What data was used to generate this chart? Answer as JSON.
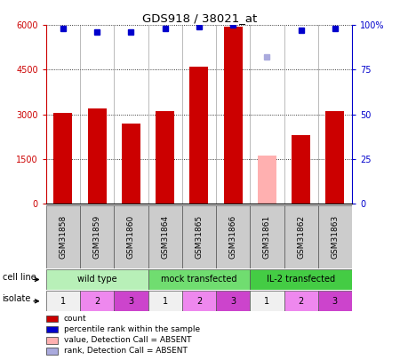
{
  "title": "GDS918 / 38021_at",
  "samples": [
    "GSM31858",
    "GSM31859",
    "GSM31860",
    "GSM31864",
    "GSM31865",
    "GSM31866",
    "GSM31861",
    "GSM31862",
    "GSM31863"
  ],
  "bar_values": [
    3050,
    3200,
    2700,
    3100,
    4600,
    5950,
    1600,
    2300,
    3100
  ],
  "bar_colors": [
    "#cc0000",
    "#cc0000",
    "#cc0000",
    "#cc0000",
    "#cc0000",
    "#cc0000",
    "#ffb0b0",
    "#cc0000",
    "#cc0000"
  ],
  "dot_values": [
    98,
    96,
    96,
    98,
    99,
    100,
    82,
    97,
    98
  ],
  "dot_colors": [
    "#0000cc",
    "#0000cc",
    "#0000cc",
    "#0000cc",
    "#0000cc",
    "#0000cc",
    "#aaaadd",
    "#0000cc",
    "#0000cc"
  ],
  "ylim_left": [
    0,
    6000
  ],
  "ylim_right": [
    0,
    100
  ],
  "yticks_left": [
    0,
    1500,
    3000,
    4500,
    6000
  ],
  "yticks_right": [
    0,
    25,
    50,
    75,
    100
  ],
  "cell_line_groups": [
    {
      "label": "wild type",
      "start": 0,
      "end": 3,
      "color": "#b8f0b8"
    },
    {
      "label": "mock transfected",
      "start": 3,
      "end": 6,
      "color": "#70dd70"
    },
    {
      "label": "IL-2 transfected",
      "start": 6,
      "end": 9,
      "color": "#44cc44"
    }
  ],
  "isolate_values": [
    1,
    2,
    3,
    1,
    2,
    3,
    1,
    2,
    3
  ],
  "isolate_colors": [
    "#f0f0f0",
    "#ee88ee",
    "#cc44cc",
    "#f0f0f0",
    "#ee88ee",
    "#cc44cc",
    "#f0f0f0",
    "#ee88ee",
    "#cc44cc"
  ],
  "legend_items": [
    {
      "label": "count",
      "color": "#cc0000"
    },
    {
      "label": "percentile rank within the sample",
      "color": "#0000cc"
    },
    {
      "label": "value, Detection Call = ABSENT",
      "color": "#ffb0b0"
    },
    {
      "label": "rank, Detection Call = ABSENT",
      "color": "#aaaadd"
    }
  ],
  "tick_color_left": "#cc0000",
  "tick_color_right": "#0000cc",
  "sample_bg": "#cccccc"
}
